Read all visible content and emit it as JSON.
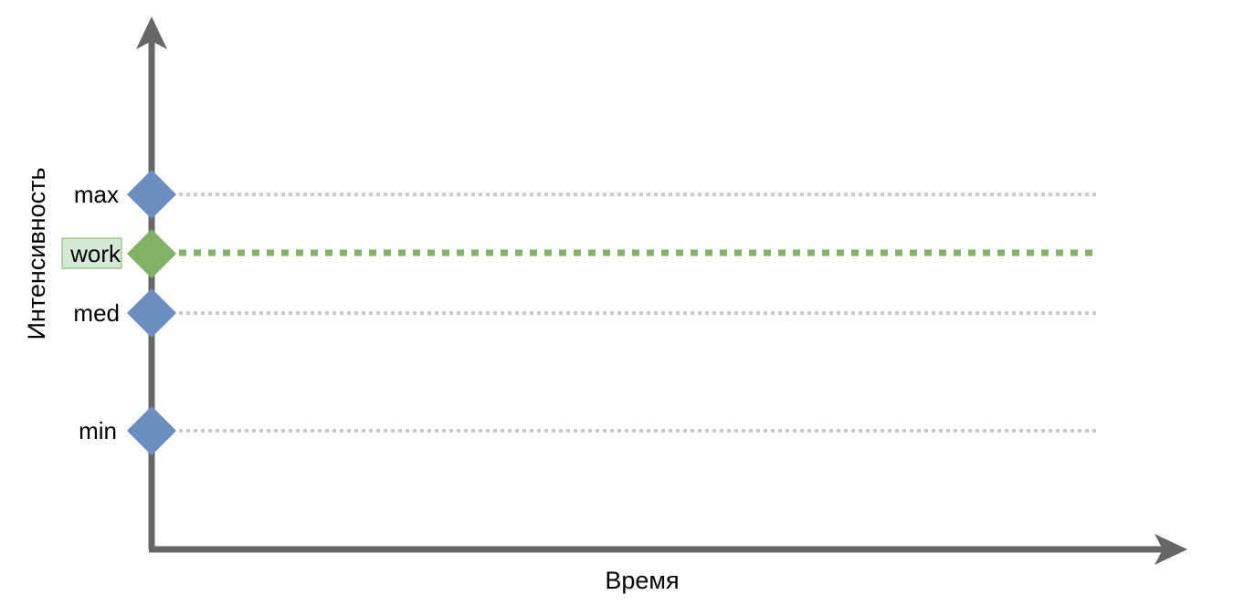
{
  "axes": {
    "y_label": "Интенсивность",
    "x_label": "Время"
  },
  "levels": [
    {
      "id": "max",
      "label": "max",
      "highlighted": false
    },
    {
      "id": "work",
      "label": "work",
      "highlighted": true
    },
    {
      "id": "med",
      "label": "med",
      "highlighted": false
    },
    {
      "id": "min",
      "label": "min",
      "highlighted": false
    }
  ],
  "colors": {
    "axis": "#666666",
    "level_marker": "#6c8ebf",
    "work_marker": "#82b366",
    "work_label_bg": "#d5e8d4",
    "guide_line": "#cccccc",
    "work_line": "#82b366"
  }
}
